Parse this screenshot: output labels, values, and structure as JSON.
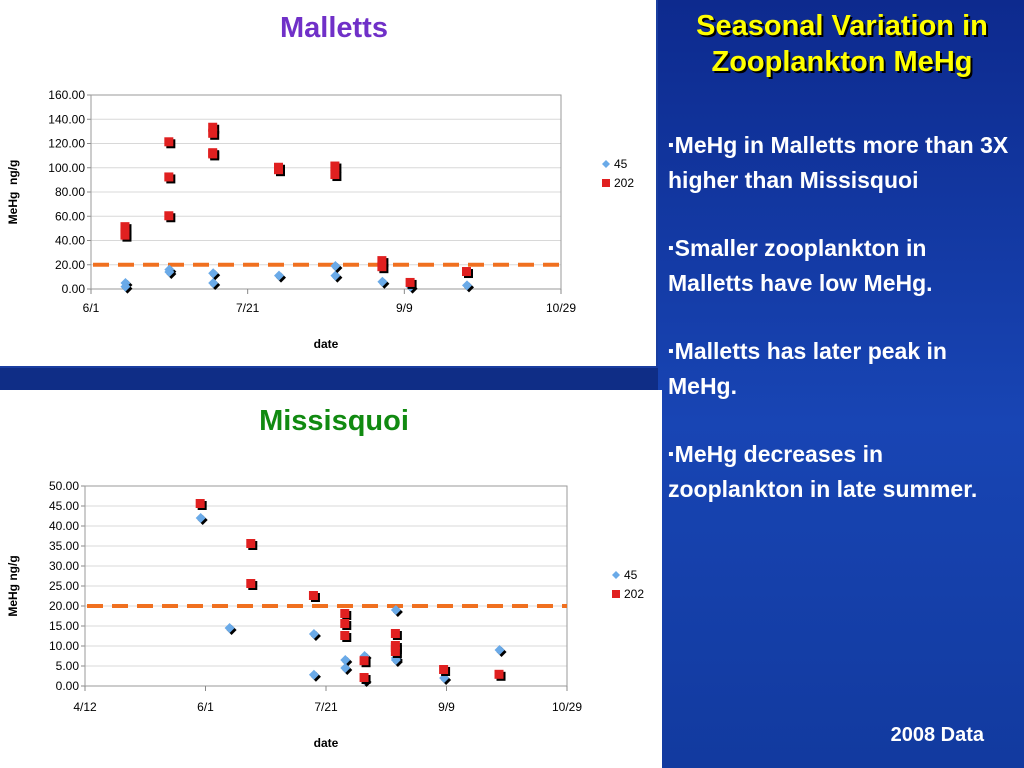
{
  "slide": {
    "title": "Seasonal Variation in Zooplankton MeHg",
    "bullet_marker": "▪",
    "bullets": [
      "MeHg in Malletts more than 3X higher than Missisquoi",
      "Smaller zooplankton in Malletts have low MeHg.",
      "Malletts has later peak in MeHg.",
      "MeHg decreases in zooplankton in late summer."
    ],
    "footnote": "2008 Data"
  },
  "colors": {
    "series_45": "#6aaae8",
    "series_202": "#e02020",
    "threshold": "#f07020",
    "malletts_title": "#7030c8",
    "missisquoi_title": "#118a11",
    "slide_title": "#ffff00"
  },
  "chart_data": [
    {
      "type": "scatter",
      "title": "Malletts",
      "xlabel": "date",
      "ylabel": "MeHg  ng/g",
      "x_ticks": [
        "6/1",
        "7/21",
        "9/9",
        "10/29"
      ],
      "xlim": [
        "2008-06-01",
        "2008-10-29"
      ],
      "ylim": [
        0,
        160
      ],
      "y_ticks": [
        "0.00",
        "20.00",
        "40.00",
        "60.00",
        "80.00",
        "100.00",
        "120.00",
        "140.00",
        "160.00"
      ],
      "threshold": 20,
      "legend": "right",
      "series": [
        {
          "name": "45",
          "x": [
            "2008-06-12",
            "2008-06-12",
            "2008-06-26",
            "2008-06-26",
            "2008-07-10",
            "2008-07-10",
            "2008-07-31",
            "2008-08-18",
            "2008-08-18",
            "2008-09-02",
            "2008-09-11",
            "2008-09-29"
          ],
          "y": [
            5,
            2,
            16,
            14,
            13,
            5,
            11,
            11,
            19,
            6,
            2,
            3
          ]
        },
        {
          "name": "202",
          "x": [
            "2008-06-12",
            "2008-06-12",
            "2008-06-12",
            "2008-06-26",
            "2008-06-26",
            "2008-06-26",
            "2008-07-10",
            "2008-07-10",
            "2008-07-10",
            "2008-07-10",
            "2008-07-31",
            "2008-07-31",
            "2008-08-18",
            "2008-08-18",
            "2008-09-02",
            "2008-09-02",
            "2008-09-11",
            "2008-09-29"
          ],
          "y": [
            51,
            46,
            44,
            121,
            92,
            60,
            133,
            128,
            112,
            111,
            100,
            98,
            101,
            94,
            23,
            18,
            5,
            14
          ]
        }
      ]
    },
    {
      "type": "scatter",
      "title": "Missisquoi",
      "xlabel": "date",
      "ylabel": "MeHg ng/g",
      "x_ticks": [
        "4/12",
        "6/1",
        "7/21",
        "9/9",
        "10/29"
      ],
      "xlim": [
        "2008-04-12",
        "2008-10-29"
      ],
      "ylim": [
        0,
        50
      ],
      "y_ticks": [
        "0.00",
        "5.00",
        "10.00",
        "15.00",
        "20.00",
        "25.00",
        "30.00",
        "35.00",
        "40.00",
        "45.00",
        "50.00"
      ],
      "threshold": 20,
      "legend": "right",
      "series": [
        {
          "name": "45",
          "x": [
            "2008-05-30",
            "2008-06-11",
            "2008-07-16",
            "2008-07-16",
            "2008-07-29",
            "2008-07-29",
            "2008-08-06",
            "2008-08-06",
            "2008-08-19",
            "2008-08-19",
            "2008-08-19",
            "2008-09-08",
            "2008-10-01"
          ],
          "y": [
            42,
            14.5,
            13,
            2.8,
            6.5,
            4.5,
            7.5,
            1.5,
            19,
            7,
            6.5,
            2,
            9
          ]
        },
        {
          "name": "202",
          "x": [
            "2008-05-30",
            "2008-06-20",
            "2008-06-20",
            "2008-07-16",
            "2008-07-29",
            "2008-07-29",
            "2008-07-29",
            "2008-08-06",
            "2008-08-06",
            "2008-08-19",
            "2008-08-19",
            "2008-08-19",
            "2008-08-19",
            "2008-09-08",
            "2008-10-01"
          ],
          "y": [
            45.5,
            35.5,
            25.5,
            22.5,
            18,
            15.5,
            12.5,
            6.2,
            2,
            13,
            10,
            9.5,
            8.5,
            4,
            2.8
          ]
        }
      ]
    }
  ]
}
